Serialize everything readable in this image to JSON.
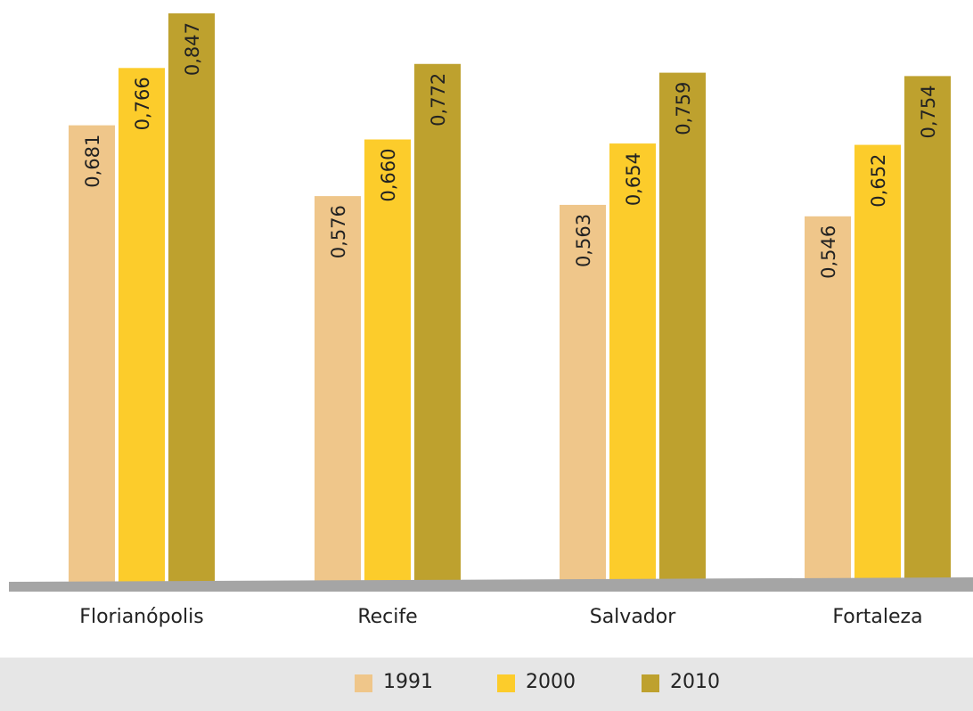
{
  "chart_data": {
    "type": "bar",
    "categories": [
      "Florianópolis",
      "Recife",
      "Salvador",
      "Fortaleza"
    ],
    "series": [
      {
        "name": "1991",
        "values": [
          0.681,
          0.576,
          0.563,
          0.546
        ],
        "labels": [
          "0,681",
          "0,576",
          "0,563",
          "0,546"
        ],
        "color": "#efc68a"
      },
      {
        "name": "2000",
        "values": [
          0.766,
          0.66,
          0.654,
          0.652
        ],
        "labels": [
          "0,766",
          "0,660",
          "0,654",
          "0,652"
        ],
        "color": "#fccc2b"
      },
      {
        "name": "2010",
        "values": [
          0.847,
          0.772,
          0.759,
          0.754
        ],
        "labels": [
          "0,847",
          "0,772",
          "0,759",
          "0,754"
        ],
        "color": "#bea12e"
      }
    ],
    "title": "",
    "xlabel": "",
    "ylabel": "",
    "ylim": [
      0,
      0.847
    ],
    "grid": false,
    "legend": "bottom"
  },
  "colors": {
    "axis": "#a5a5a5",
    "legend_background": "#e6e6e6",
    "text": "#222222"
  }
}
